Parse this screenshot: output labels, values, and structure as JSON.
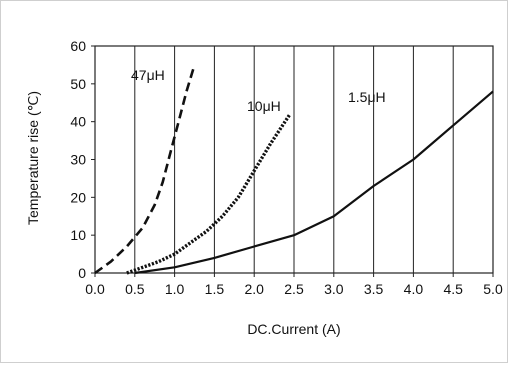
{
  "chart_data": {
    "type": "line",
    "xlabel": "DC.Current (A)",
    "ylabel": "Temperature rise (℃)",
    "xlim": [
      0,
      5
    ],
    "ylim": [
      0,
      60
    ],
    "x_ticks": [
      "0.0",
      "0.5",
      "1.0",
      "1.5",
      "2.0",
      "2.5",
      "3.0",
      "3.5",
      "4.0",
      "4.5",
      "5.0"
    ],
    "y_ticks": [
      "0",
      "10",
      "20",
      "30",
      "40",
      "50",
      "60"
    ],
    "grid": "vertical-only",
    "series": [
      {
        "name": "47μH",
        "style": "dashed",
        "x": [
          0.0,
          0.2,
          0.4,
          0.6,
          0.75,
          0.85,
          0.95,
          1.05,
          1.15,
          1.25
        ],
        "y": [
          0,
          3,
          7,
          12,
          18,
          24,
          32,
          40,
          48,
          55
        ]
      },
      {
        "name": "10μH",
        "style": "dotted",
        "x": [
          0.4,
          0.6,
          0.8,
          1.0,
          1.2,
          1.4,
          1.6,
          1.8,
          2.0,
          2.2,
          2.45
        ],
        "y": [
          0,
          1.5,
          3,
          5,
          8,
          11,
          15,
          20,
          27,
          34,
          42
        ]
      },
      {
        "name": "1.5μH",
        "style": "solid",
        "x": [
          0.5,
          1.0,
          1.5,
          2.0,
          2.5,
          3.0,
          3.5,
          4.0,
          4.5,
          5.0
        ],
        "y": [
          0,
          1.5,
          4,
          7,
          10,
          15,
          23,
          30,
          39,
          48
        ]
      }
    ]
  }
}
